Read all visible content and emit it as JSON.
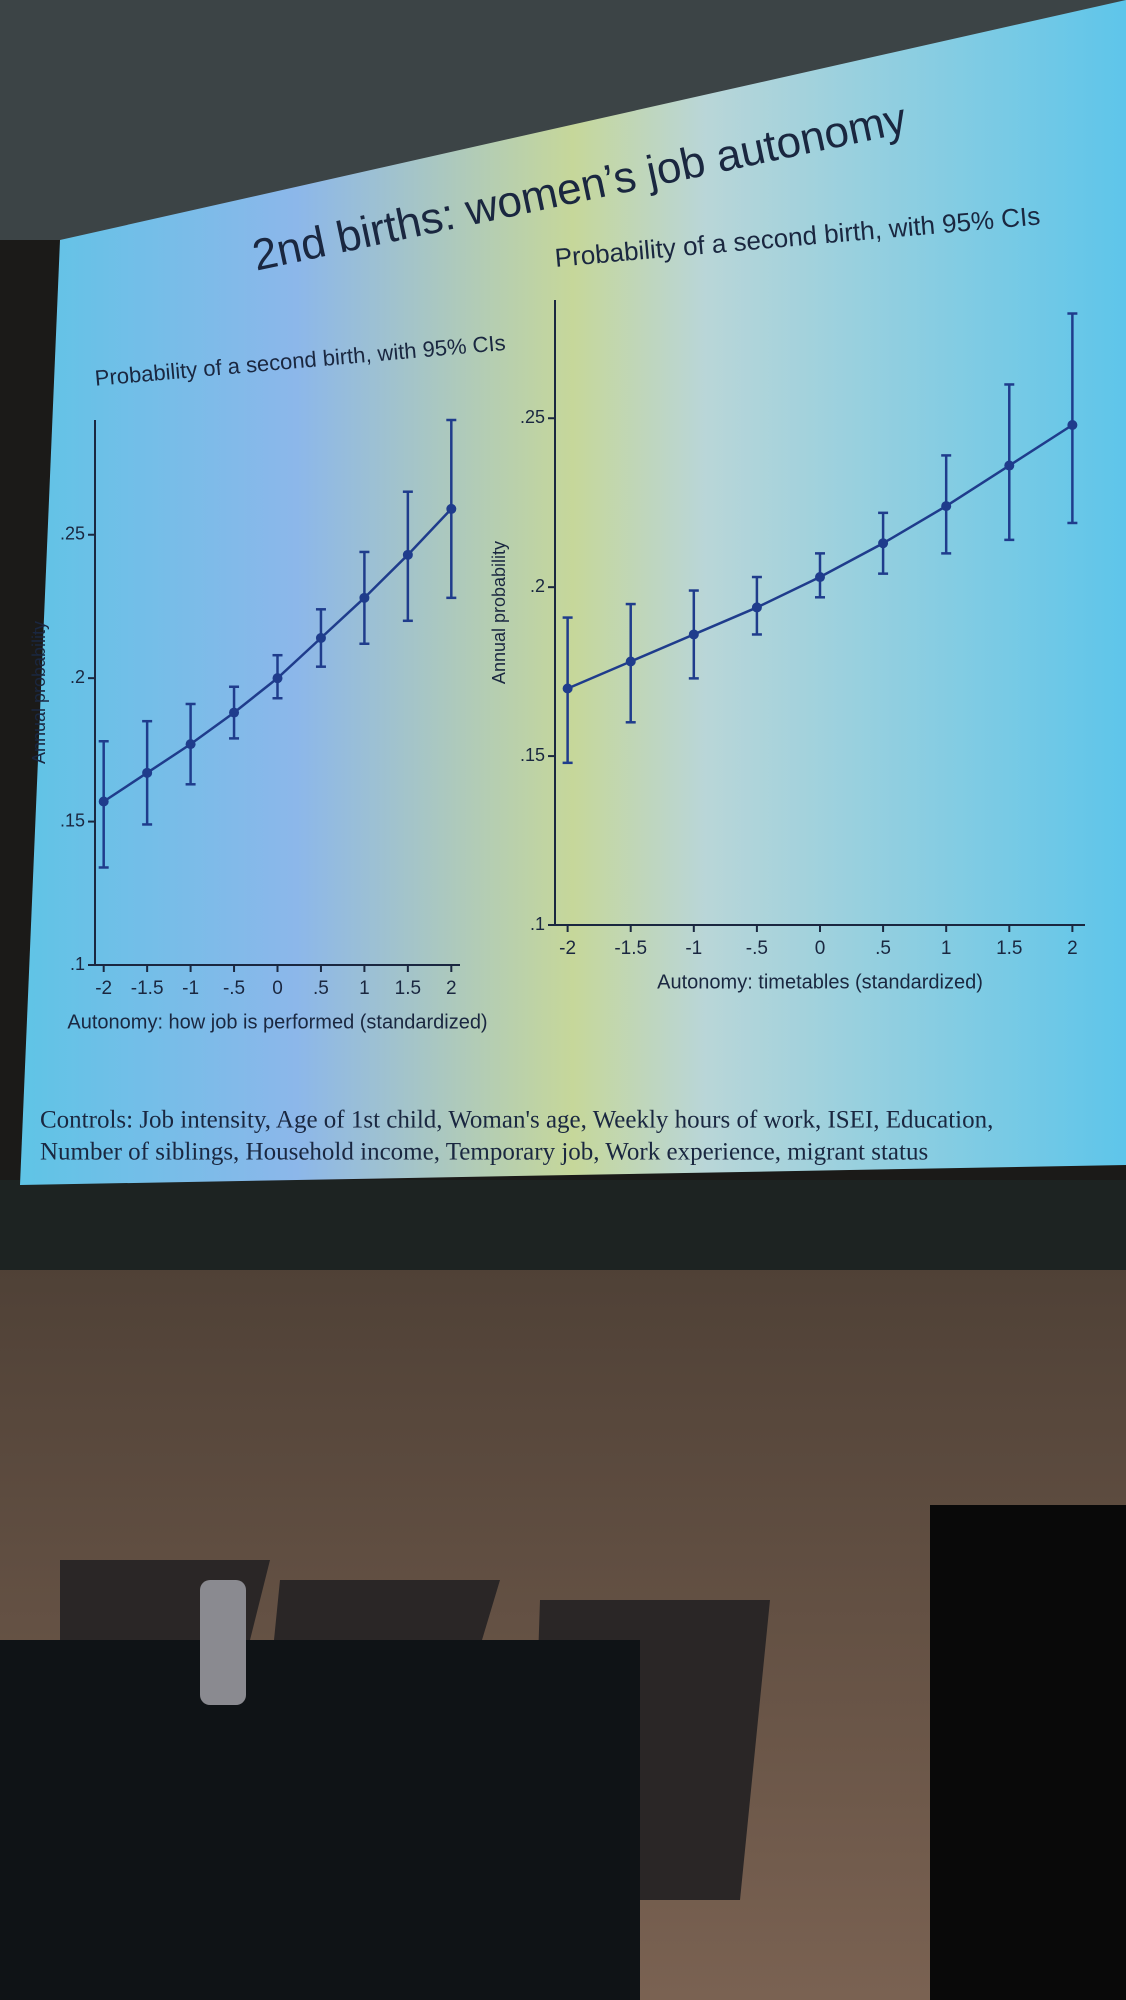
{
  "slide_title": "2nd births: women’s job autonomy",
  "controls": [
    "Controls: Job intensity, Age of 1st child, Woman's age, Weekly hours of work, ISEI, Education,",
    "Number of siblings, Household income, Temporary job, Work experience, migrant status"
  ],
  "chart_data": [
    {
      "type": "line",
      "title": "Probability of a second birth, with 95% CIs",
      "x_label": "Autonomy: how job is performed (standardized)",
      "y_label": "Annual probability",
      "color": "#1f3c8c",
      "x": [
        -2,
        -1.5,
        -1,
        -0.5,
        0,
        0.5,
        1,
        1.5,
        2
      ],
      "series": [
        {
          "values": [
            0.157,
            0.167,
            0.177,
            0.188,
            0.2,
            0.214,
            0.228,
            0.243,
            0.259
          ],
          "ci_lower": [
            0.134,
            0.149,
            0.163,
            0.179,
            0.193,
            0.204,
            0.212,
            0.22,
            0.228
          ],
          "ci_upper": [
            0.178,
            0.185,
            0.191,
            0.197,
            0.208,
            0.224,
            0.244,
            0.265,
            0.29
          ]
        }
      ],
      "xlim": [
        -2.1,
        2.1
      ],
      "xticks": [
        -2,
        {
          "value": -1.5,
          "label": "-1.5"
        },
        -1,
        {
          "value": -0.5,
          "label": "-.5"
        },
        0,
        {
          "value": 0.5,
          "label": ".5"
        },
        1,
        {
          "value": 1.5,
          "label": "1.5"
        },
        2
      ],
      "ylim": [
        0.1,
        0.29
      ],
      "yticks": [
        {
          "value": 0.1,
          "label": ".1"
        },
        {
          "value": 0.15,
          "label": ".15"
        },
        {
          "value": 0.2,
          "label": ".2"
        },
        {
          "value": 0.25,
          "label": ".25"
        }
      ]
    },
    {
      "type": "line",
      "title": "Probability of a second birth, with 95% CIs",
      "x_label": "Autonomy: timetables (standardized)",
      "y_label": "Annual probability",
      "color": "#1f3c8c",
      "x": [
        -2,
        -1.5,
        -1,
        -0.5,
        0,
        0.5,
        1,
        1.5,
        2
      ],
      "series": [
        {
          "values": [
            0.17,
            0.178,
            0.186,
            0.194,
            0.203,
            0.213,
            0.224,
            0.236,
            0.248
          ],
          "ci_lower": [
            0.148,
            0.16,
            0.173,
            0.186,
            0.197,
            0.204,
            0.21,
            0.214,
            0.219
          ],
          "ci_upper": [
            0.191,
            0.195,
            0.199,
            0.203,
            0.21,
            0.222,
            0.239,
            0.26,
            0.281
          ]
        }
      ],
      "xlim": [
        -2.1,
        2.1
      ],
      "xticks": [
        -2,
        {
          "value": -1.5,
          "label": "-1.5"
        },
        -1,
        {
          "value": -0.5,
          "label": "-.5"
        },
        0,
        {
          "value": 0.5,
          "label": ".5"
        },
        1,
        {
          "value": 1.5,
          "label": "1.5"
        },
        2
      ],
      "ylim": [
        0.1,
        0.285
      ],
      "yticks": [
        {
          "value": 0.1,
          "label": ".1"
        },
        {
          "value": 0.15,
          "label": ".15"
        },
        {
          "value": 0.2,
          "label": ".2"
        },
        {
          "value": 0.25,
          "label": ".25"
        }
      ]
    }
  ]
}
